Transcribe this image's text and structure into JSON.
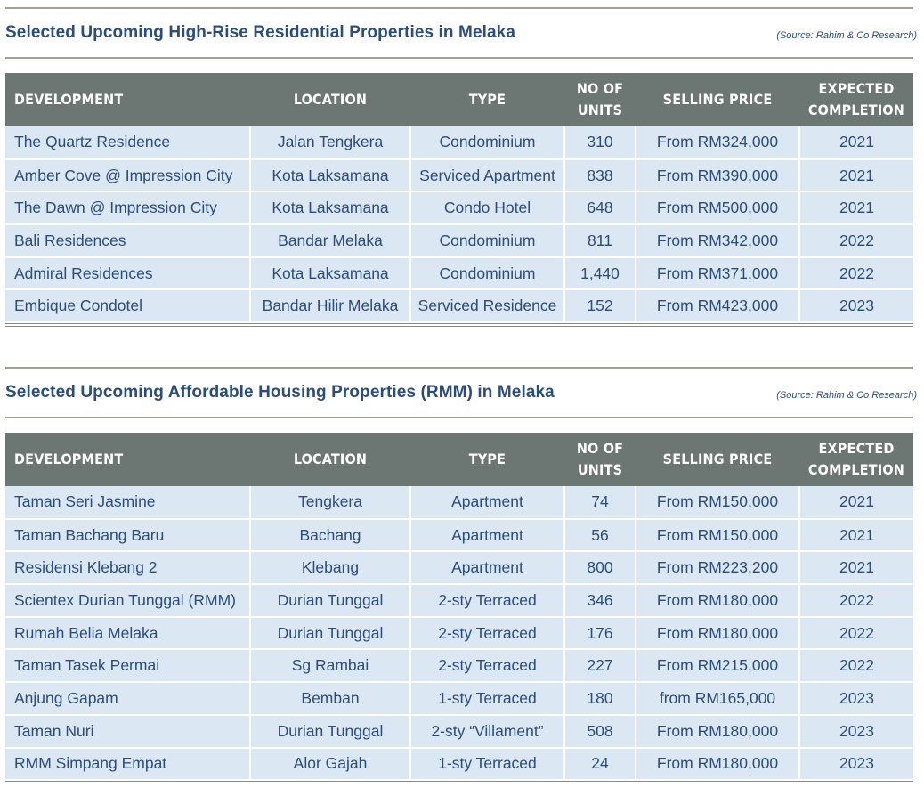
{
  "columns": [
    "DEVELOPMENT",
    "LOCATION",
    "TYPE",
    "NO OF",
    "UNITS",
    "SELLING PRICE",
    "EXPECTED",
    "COMPLETION"
  ],
  "table1": {
    "title": "Selected Upcoming High-Rise Residential Properties in Melaka",
    "source": "(Source: Rahim & Co Research)",
    "rows": [
      [
        "The Quartz Residence",
        "Jalan Tengkera",
        "Condominium",
        "310",
        "From RM324,000",
        "2021"
      ],
      [
        "Amber Cove @ Impression City",
        "Kota Laksamana",
        "Serviced Apartment",
        "838",
        "From RM390,000",
        "2021"
      ],
      [
        "The Dawn @ Impression City",
        "Kota Laksamana",
        "Condo Hotel",
        "648",
        "From RM500,000",
        "2021"
      ],
      [
        "Bali Residences",
        "Bandar Melaka",
        "Condominium",
        "811",
        "From RM342,000",
        "2022"
      ],
      [
        "Admiral Residences",
        "Kota Laksamana",
        "Condominium",
        "1,440",
        "From RM371,000",
        "2022"
      ],
      [
        "Embique Condotel",
        "Bandar Hilir Melaka",
        "Serviced Residence",
        "152",
        "From RM423,000",
        "2023"
      ]
    ]
  },
  "table2": {
    "title": "Selected Upcoming Affordable Housing Properties (RMM) in Melaka",
    "source": "(Source: Rahim & Co Research)",
    "rows": [
      [
        "Taman Seri Jasmine",
        "Tengkera",
        "Apartment",
        "74",
        "From RM150,000",
        "2021"
      ],
      [
        "Taman Bachang Baru",
        "Bachang",
        "Apartment",
        "56",
        "From RM150,000",
        "2021"
      ],
      [
        "Residensi Klebang 2",
        "Klebang",
        "Apartment",
        "800",
        "From RM223,200",
        "2021"
      ],
      [
        "Scientex Durian Tunggal (RMM)",
        "Durian Tunggal",
        "2-sty Terraced",
        "346",
        "From RM180,000",
        "2022"
      ],
      [
        "Rumah Belia Melaka",
        "Durian Tunggal",
        "2-sty Terraced",
        "176",
        "From RM180,000",
        "2022"
      ],
      [
        "Taman Tasek Permai",
        "Sg Rambai",
        "2-sty Terraced",
        "227",
        "From RM215,000",
        "2022"
      ],
      [
        "Anjung Gapam",
        "Bemban",
        "1-sty Terraced",
        "180",
        "from RM165,000",
        "2023"
      ],
      [
        "Taman Nuri",
        "Durian Tunggal",
        "2-sty “Villament”",
        "508",
        "From RM180,000",
        "2023"
      ],
      [
        "RMM Simpang Empat",
        "Alor Gajah",
        "1-sty Terraced",
        "24",
        "From RM180,000",
        "2023"
      ]
    ]
  }
}
